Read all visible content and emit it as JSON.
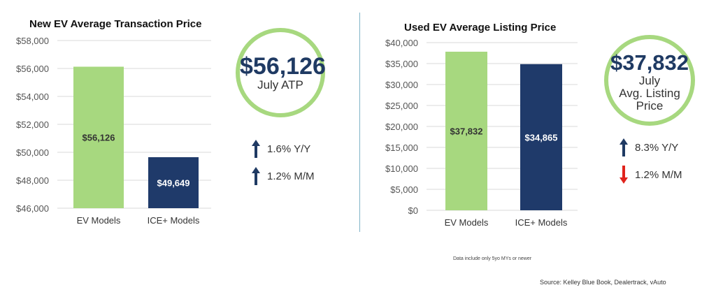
{
  "chart_data": [
    {
      "type": "bar",
      "title": "New EV Average Transaction Price",
      "categories": [
        "EV Models",
        "ICE+ Models"
      ],
      "values": [
        56126,
        49649
      ],
      "data_labels": [
        "$56,126",
        "$49,649"
      ],
      "colors": [
        "#a7d87f",
        "#1f3a6a"
      ],
      "label_colors": [
        "#333333",
        "#ffffff"
      ],
      "ylim": [
        46000,
        58000
      ],
      "yticks": [
        46000,
        48000,
        50000,
        52000,
        54000,
        56000,
        58000
      ],
      "ytick_labels": [
        "$46,000",
        "$48,000",
        "$50,000",
        "$52,000",
        "$54,000",
        "$56,000",
        "$58,000"
      ],
      "grid": true,
      "xlabel": "",
      "ylabel": ""
    },
    {
      "type": "bar",
      "title": "Used EV Average Listing Price",
      "categories": [
        "EV Models",
        "ICE+ Models"
      ],
      "values": [
        37832,
        34865
      ],
      "data_labels": [
        "$37,832",
        "$34,865"
      ],
      "colors": [
        "#a7d87f",
        "#1f3a6a"
      ],
      "label_colors": [
        "#333333",
        "#ffffff"
      ],
      "ylim": [
        0,
        40000
      ],
      "yticks": [
        0,
        5000,
        10000,
        15000,
        20000,
        25000,
        30000,
        35000,
        40000
      ],
      "ytick_labels": [
        "$0",
        "$5,000",
        "$10,000",
        "$15,000",
        "$20,000",
        "$25,000",
        "$30,000",
        "$35,000",
        "$40,000"
      ],
      "grid": true,
      "xlabel": "",
      "ylabel": ""
    }
  ],
  "callouts": {
    "new": {
      "value": "$56,126",
      "label": "July ATP",
      "changes": [
        {
          "text": "1.6% Y/Y",
          "direction": "up",
          "arrow_icon": "arrow-up-icon",
          "color": "#1f3a63"
        },
        {
          "text": "1.2% M/M",
          "direction": "up",
          "arrow_icon": "arrow-up-icon",
          "color": "#1f3a63"
        }
      ]
    },
    "used": {
      "value": "$37,832",
      "label_lines": [
        "July",
        "Avg. Listing",
        "Price"
      ],
      "changes": [
        {
          "text": "8.3% Y/Y",
          "direction": "up",
          "arrow_icon": "arrow-up-icon",
          "color": "#1f3a63"
        },
        {
          "text": "1.2% M/M",
          "direction": "down",
          "arrow_icon": "arrow-down-icon",
          "color": "#e0231c"
        }
      ]
    }
  },
  "footnote": "Data include only 5yo MYs or newer",
  "source": "Source: Kelley Blue Book, Dealertrack, vAuto",
  "colors": {
    "ring": "#a7d87f",
    "value_text": "#1f3a63",
    "divider": "#7fb3c8"
  }
}
